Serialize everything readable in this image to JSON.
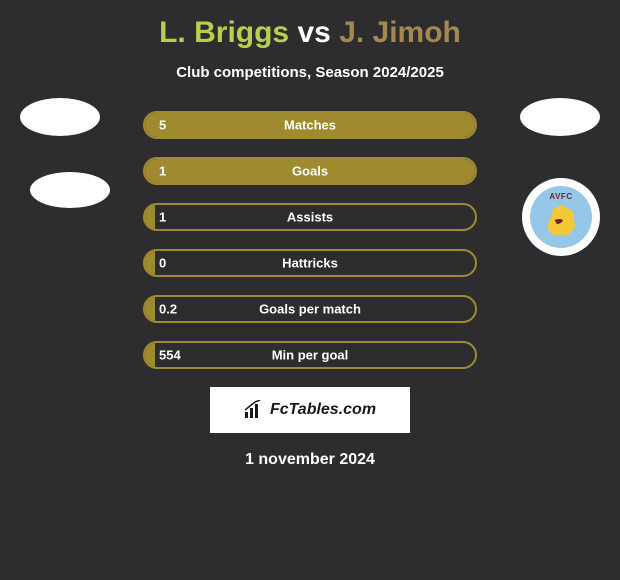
{
  "title": {
    "player1": "L. Briggs",
    "vs": "vs",
    "player2": "J. Jimoh"
  },
  "subtitle": "Club competitions, Season 2024/2025",
  "badge": {
    "club_text": "AVFC"
  },
  "bars": {
    "background_color": "#2d2d30",
    "border_color": "#a08a2f",
    "fill_color": "#a08a2f",
    "text_color": "#ffffff",
    "items": [
      {
        "value": "5",
        "label": "Matches",
        "fill_pct": 100
      },
      {
        "value": "1",
        "label": "Goals",
        "fill_pct": 100
      },
      {
        "value": "1",
        "label": "Assists",
        "fill_pct": 3
      },
      {
        "value": "0",
        "label": "Hattricks",
        "fill_pct": 3
      },
      {
        "value": "0.2",
        "label": "Goals per match",
        "fill_pct": 3
      },
      {
        "value": "554",
        "label": "Min per goal",
        "fill_pct": 3
      }
    ]
  },
  "footer": {
    "brand": "FcTables.com",
    "date": "1 november 2024"
  },
  "colors": {
    "bg": "#2d2d30",
    "p1": "#b6d04b",
    "p2": "#a3894f",
    "white": "#ffffff",
    "club_blue": "#95c7e8",
    "club_maroon": "#7a1f2a",
    "club_yellow": "#f2c938"
  }
}
